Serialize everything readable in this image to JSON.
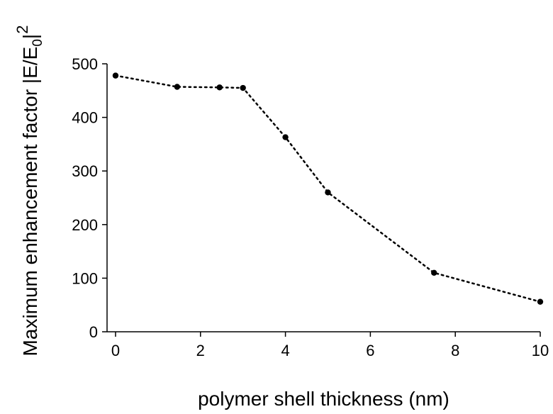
{
  "chart_data": {
    "type": "line",
    "line_style": "dotted",
    "marker": "circle",
    "title": "",
    "xlabel": "polymer shell thickness (nm)",
    "ylabel": {
      "main": "Maximum enhancement factor |E/E",
      "sub": "0",
      "tail": "|",
      "sup": "2"
    },
    "xlim": [
      -0.2,
      10
    ],
    "ylim": [
      0,
      500
    ],
    "xticks": [
      0,
      2,
      4,
      6,
      8,
      10
    ],
    "yticks": [
      0,
      100,
      200,
      300,
      400,
      500
    ],
    "grid": false,
    "legend": "none",
    "series": [
      {
        "x": [
          0,
          1.45,
          2.45,
          3,
          4,
          5,
          7.5,
          10
        ],
        "y": [
          478,
          457,
          456,
          455,
          363,
          260,
          110,
          56
        ]
      }
    ],
    "colors": {
      "line": "#000000",
      "marker": "#000000",
      "axis": "#000000"
    }
  }
}
